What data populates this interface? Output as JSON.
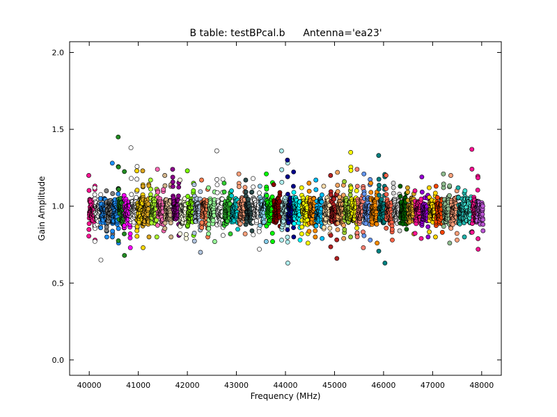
{
  "chart_data": {
    "type": "scatter",
    "title": "B table: testBPcal.b",
    "subtitle": "Antenna='ea23'",
    "xlabel": "Frequency (MHz)",
    "ylabel": "Gain Amplitude",
    "xlim": [
      39600,
      48400
    ],
    "ylim": [
      -0.1,
      2.07
    ],
    "xticks": [
      40000,
      41000,
      42000,
      43000,
      44000,
      45000,
      46000,
      47000,
      48000
    ],
    "xtick_labels": [
      "40000",
      "41000",
      "42000",
      "43000",
      "44000",
      "45000",
      "46000",
      "47000",
      "48000"
    ],
    "yticks": [
      0.0,
      0.5,
      1.0,
      1.5,
      2.0
    ],
    "ytick_labels": [
      "0.0",
      "0.5",
      "1.0",
      "1.5",
      "2.0"
    ],
    "grid": false,
    "legend": false,
    "marker_style": "circle with black edge",
    "channels_per_window": 64,
    "series": [
      {
        "color": "#ff1493",
        "freq_start": 39990,
        "width": 128,
        "min": 0.78,
        "max": 1.2
      },
      {
        "color": "#ffffff",
        "freq_start": 40110,
        "width": 128,
        "min": 0.65,
        "max": 1.12
      },
      {
        "color": "#1e90ff",
        "freq_start": 40230,
        "width": 128,
        "min": 0.8,
        "max": 1.05
      },
      {
        "color": "#808080",
        "freq_start": 40350,
        "width": 128,
        "min": 0.82,
        "max": 1.1
      },
      {
        "color": "#1e90ff",
        "freq_start": 40470,
        "width": 128,
        "min": 0.76,
        "max": 1.28
      },
      {
        "color": "#228b22",
        "freq_start": 40590,
        "width": 128,
        "min": 0.68,
        "max": 1.45
      },
      {
        "color": "#ff00ff",
        "freq_start": 40710,
        "width": 128,
        "min": 0.73,
        "max": 1.07
      },
      {
        "color": "#ffffff",
        "freq_start": 40850,
        "width": 128,
        "min": 0.86,
        "max": 1.38
      },
      {
        "color": "#ffd700",
        "freq_start": 40970,
        "width": 128,
        "min": 0.73,
        "max": 1.23
      },
      {
        "color": "#daa520",
        "freq_start": 41090,
        "width": 128,
        "min": 0.8,
        "max": 1.23
      },
      {
        "color": "#adff2f",
        "freq_start": 41250,
        "width": 128,
        "min": 0.8,
        "max": 1.17
      },
      {
        "color": "#ff69b4",
        "freq_start": 41390,
        "width": 128,
        "min": 0.84,
        "max": 1.24
      },
      {
        "color": "#d2b48c",
        "freq_start": 41540,
        "width": 128,
        "min": 0.8,
        "max": 1.2
      },
      {
        "color": "#8b008b",
        "freq_start": 41700,
        "width": 128,
        "min": 0.81,
        "max": 1.24
      },
      {
        "color": "#ffffe0",
        "freq_start": 41850,
        "width": 128,
        "min": 0.79,
        "max": 1.17
      },
      {
        "color": "#7cfc00",
        "freq_start": 42000,
        "width": 128,
        "min": 0.81,
        "max": 1.23
      },
      {
        "color": "#b0c4de",
        "freq_start": 42140,
        "width": 128,
        "min": 0.7,
        "max": 1.14
      },
      {
        "color": "#ff7f50",
        "freq_start": 42290,
        "width": 128,
        "min": 0.8,
        "max": 1.17
      },
      {
        "color": "#98fb98",
        "freq_start": 42430,
        "width": 128,
        "min": 0.77,
        "max": 1.12
      },
      {
        "color": "#ffffff",
        "freq_start": 42600,
        "width": 128,
        "min": 0.81,
        "max": 1.36
      },
      {
        "color": "#32cd32",
        "freq_start": 42750,
        "width": 128,
        "min": 0.82,
        "max": 1.15
      },
      {
        "color": "#00ced1",
        "freq_start": 42900,
        "width": 128,
        "min": 0.85,
        "max": 1.1
      },
      {
        "color": "#ffa07a",
        "freq_start": 43050,
        "width": 128,
        "min": 0.82,
        "max": 1.21
      },
      {
        "color": "#2f4f4f",
        "freq_start": 43190,
        "width": 128,
        "min": 0.84,
        "max": 1.17
      },
      {
        "color": "#ffffff",
        "freq_start": 43340,
        "width": 128,
        "min": 0.72,
        "max": 1.18
      },
      {
        "color": "#87ceeb",
        "freq_start": 43480,
        "width": 128,
        "min": 0.77,
        "max": 1.13
      },
      {
        "color": "#00ff00",
        "freq_start": 43610,
        "width": 128,
        "min": 0.77,
        "max": 1.21
      },
      {
        "color": "#8b0000",
        "freq_start": 43760,
        "width": 128,
        "min": 0.87,
        "max": 1.14
      },
      {
        "color": "#afeeee",
        "freq_start": 43920,
        "width": 128,
        "min": 0.63,
        "max": 1.36
      },
      {
        "color": "#00008b",
        "freq_start": 44040,
        "width": 128,
        "min": 0.8,
        "max": 1.3
      },
      {
        "color": "#00ffff",
        "freq_start": 44170,
        "width": 128,
        "min": 0.78,
        "max": 1.09
      },
      {
        "color": "#ffff00",
        "freq_start": 44330,
        "width": 128,
        "min": 0.76,
        "max": 1.12
      },
      {
        "color": "#ff8c00",
        "freq_start": 44480,
        "width": 128,
        "min": 0.8,
        "max": 1.15
      },
      {
        "color": "#00bfff",
        "freq_start": 44620,
        "width": 128,
        "min": 0.79,
        "max": 1.17
      },
      {
        "color": "#ffdead",
        "freq_start": 44780,
        "width": 128,
        "min": 0.82,
        "max": 1.13
      },
      {
        "color": "#b22222",
        "freq_start": 44920,
        "width": 128,
        "min": 0.66,
        "max": 1.2
      },
      {
        "color": "#f4a460",
        "freq_start": 45060,
        "width": 128,
        "min": 0.79,
        "max": 1.22
      },
      {
        "color": "#9acd32",
        "freq_start": 45200,
        "width": 128,
        "min": 0.8,
        "max": 1.16
      },
      {
        "color": "#ffff00",
        "freq_start": 45330,
        "width": 128,
        "min": 0.82,
        "max": 1.35
      },
      {
        "color": "#fa8072",
        "freq_start": 45460,
        "width": 128,
        "min": 0.73,
        "max": 1.24
      },
      {
        "color": "#6495ed",
        "freq_start": 45600,
        "width": 128,
        "min": 0.78,
        "max": 1.21
      },
      {
        "color": "#ff8c00",
        "freq_start": 45740,
        "width": 128,
        "min": 0.76,
        "max": 1.15
      },
      {
        "color": "#008080",
        "freq_start": 45900,
        "width": 128,
        "min": 0.63,
        "max": 1.33
      },
      {
        "color": "#ff6347",
        "freq_start": 46050,
        "width": 128,
        "min": 0.78,
        "max": 1.2
      },
      {
        "color": "#d3d3d3",
        "freq_start": 46200,
        "width": 128,
        "min": 0.84,
        "max": 1.15
      },
      {
        "color": "#006400",
        "freq_start": 46340,
        "width": 128,
        "min": 0.85,
        "max": 1.13
      },
      {
        "color": "#daa520",
        "freq_start": 46490,
        "width": 128,
        "min": 0.82,
        "max": 1.12
      },
      {
        "color": "#ff1493",
        "freq_start": 46640,
        "width": 128,
        "min": 0.79,
        "max": 1.1
      },
      {
        "color": "#9400d3",
        "freq_start": 46780,
        "width": 128,
        "min": 0.8,
        "max": 1.19
      },
      {
        "color": "#ffd700",
        "freq_start": 46930,
        "width": 128,
        "min": 0.8,
        "max": 1.12
      },
      {
        "color": "#ff4500",
        "freq_start": 47070,
        "width": 128,
        "min": 0.83,
        "max": 1.13
      },
      {
        "color": "#8fbc8f",
        "freq_start": 47220,
        "width": 128,
        "min": 0.76,
        "max": 1.21
      },
      {
        "color": "#ffa07a",
        "freq_start": 47370,
        "width": 128,
        "min": 0.78,
        "max": 1.2
      },
      {
        "color": "#20b2aa",
        "freq_start": 47520,
        "width": 128,
        "min": 0.8,
        "max": 1.12
      },
      {
        "color": "#40e0d0",
        "freq_start": 47660,
        "width": 128,
        "min": 0.83,
        "max": 1.1
      },
      {
        "color": "#ff1493",
        "freq_start": 47800,
        "width": 128,
        "min": 0.72,
        "max": 1.37
      },
      {
        "color": "#ba55d3",
        "freq_start": 47900,
        "width": 128,
        "min": 0.84,
        "max": 1.03
      }
    ]
  }
}
